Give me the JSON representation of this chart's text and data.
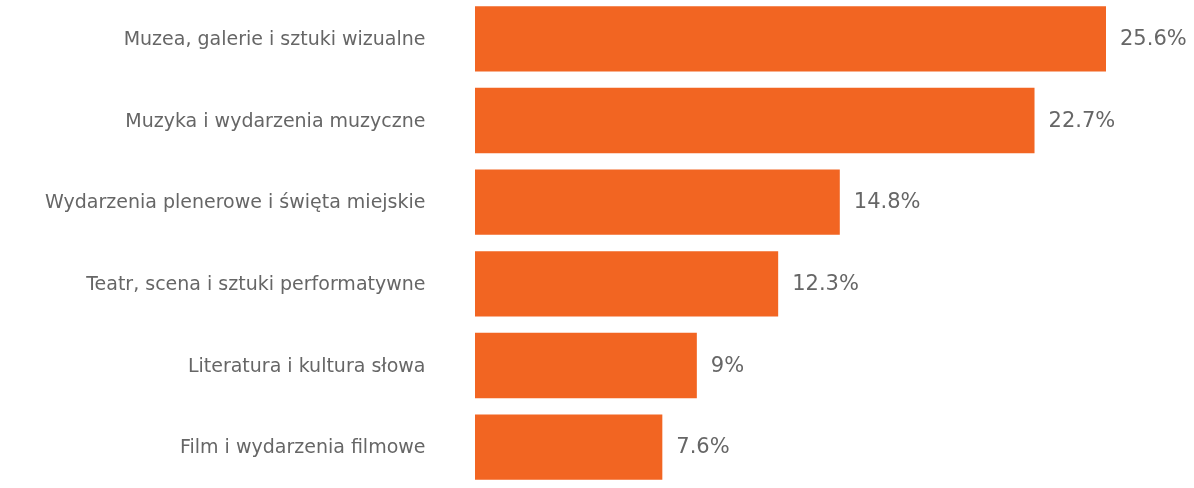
{
  "chart_data": {
    "type": "bar",
    "orientation": "horizontal",
    "categories": [
      "Muzea, galerie i sztuki wizualne",
      "Muzyka i wydarzenia muzyczne",
      "Wydarzenia plenerowe i święta miejskie",
      "Teatr, scena i sztuki performatywne",
      "Literatura i kultura słowa",
      "Film i wydarzenia filmowe"
    ],
    "values": [
      25.6,
      22.7,
      14.8,
      12.3,
      9,
      7.6
    ],
    "value_labels": [
      "25.6%",
      "22.7%",
      "14.8%",
      "12.3%",
      "9%",
      "7.6%"
    ],
    "color": "#f26522",
    "tick_labels": "y"
  }
}
